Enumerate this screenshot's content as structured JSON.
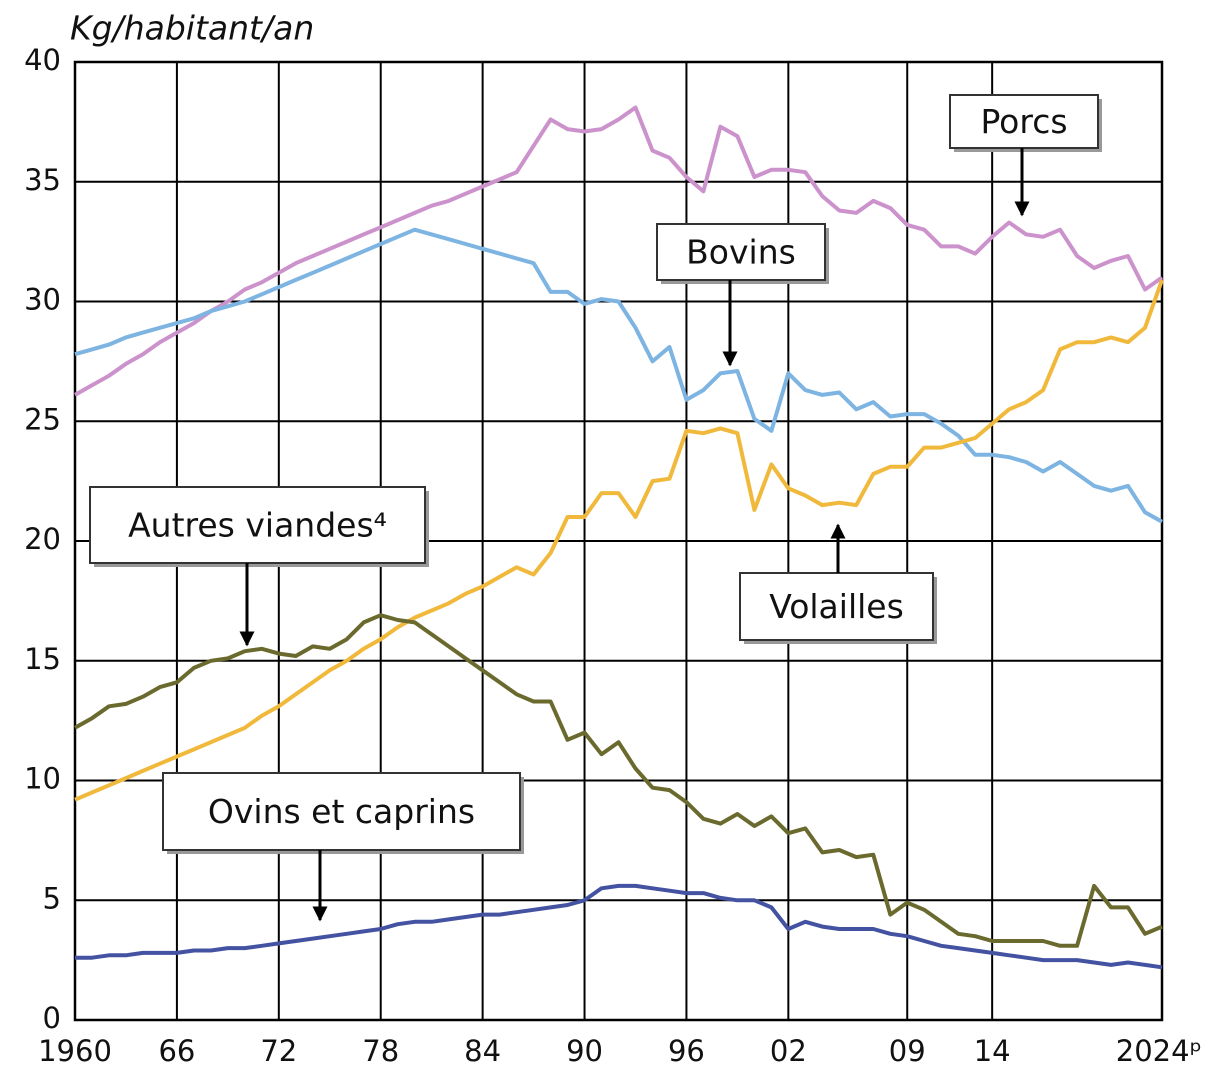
{
  "chart_data": {
    "type": "line",
    "y_label": "Kg/habitant/an",
    "xlim": [
      1960,
      2024
    ],
    "ylim": [
      0,
      40
    ],
    "yticks": [
      0,
      5,
      10,
      15,
      20,
      25,
      30,
      35,
      40
    ],
    "xticks": [
      1960,
      {
        "value": 1966,
        "label": "66"
      },
      {
        "value": 1972,
        "label": "72"
      },
      {
        "value": 1978,
        "label": "78"
      },
      {
        "value": 1984,
        "label": "84"
      },
      {
        "value": 1990,
        "label": "90"
      },
      {
        "value": 1996,
        "label": "96"
      },
      {
        "value": 2002,
        "label": "02"
      },
      {
        "value": 2009,
        "label": "09"
      },
      {
        "value": 2014,
        "label": "14"
      },
      {
        "value": 2024,
        "label": "2024ᵖ"
      }
    ],
    "grid": true,
    "x": [
      1960,
      1961,
      1962,
      1963,
      1964,
      1965,
      1966,
      1967,
      1968,
      1969,
      1970,
      1971,
      1972,
      1973,
      1974,
      1975,
      1976,
      1977,
      1978,
      1979,
      1980,
      1981,
      1982,
      1983,
      1984,
      1985,
      1986,
      1987,
      1988,
      1989,
      1990,
      1991,
      1992,
      1993,
      1994,
      1995,
      1996,
      1997,
      1998,
      1999,
      2000,
      2001,
      2002,
      2003,
      2004,
      2005,
      2006,
      2007,
      2008,
      2009,
      2010,
      2011,
      2012,
      2013,
      2014,
      2015,
      2016,
      2017,
      2018,
      2019,
      2020,
      2021,
      2022,
      2023,
      2024
    ],
    "series": [
      {
        "name": "Porcs",
        "color": "#cc92cc",
        "values": [
          26.1,
          26.5,
          26.9,
          27.4,
          27.8,
          28.3,
          28.7,
          29.1,
          29.6,
          30.0,
          30.5,
          30.8,
          31.2,
          31.6,
          31.9,
          32.2,
          32.5,
          32.8,
          33.1,
          33.4,
          33.7,
          34.0,
          34.2,
          34.5,
          34.8,
          35.1,
          35.4,
          36.5,
          37.6,
          37.2,
          37.1,
          37.2,
          37.6,
          38.1,
          36.3,
          36.0,
          35.2,
          34.6,
          37.3,
          36.9,
          35.2,
          35.5,
          35.5,
          35.4,
          34.4,
          33.8,
          33.7,
          34.2,
          33.9,
          33.2,
          33.0,
          32.3,
          32.3,
          32.0,
          32.7,
          33.3,
          32.8,
          32.7,
          33.0,
          31.9,
          31.4,
          31.7,
          31.9,
          30.5,
          31.0
        ]
      },
      {
        "name": "Bovins",
        "color": "#7db4e2",
        "values": [
          27.8,
          28.0,
          28.2,
          28.5,
          28.7,
          28.9,
          29.1,
          29.3,
          29.6,
          29.8,
          30.0,
          30.3,
          30.6,
          30.9,
          31.2,
          31.5,
          31.8,
          32.1,
          32.4,
          32.7,
          33.0,
          32.8,
          32.6,
          32.4,
          32.2,
          32.0,
          31.8,
          31.6,
          30.4,
          30.4,
          29.9,
          30.1,
          30.0,
          28.9,
          27.5,
          28.1,
          25.9,
          26.3,
          27.0,
          27.1,
          25.1,
          24.6,
          27.0,
          26.3,
          26.1,
          26.2,
          25.5,
          25.8,
          25.2,
          25.3,
          25.3,
          24.9,
          24.4,
          23.6,
          23.6,
          23.5,
          23.3,
          22.9,
          23.3,
          22.8,
          22.3,
          22.1,
          22.3,
          21.2,
          20.8
        ]
      },
      {
        "name": "Volailles",
        "color": "#f0b93c",
        "values": [
          9.2,
          9.5,
          9.8,
          10.1,
          10.4,
          10.7,
          11.0,
          11.3,
          11.6,
          11.9,
          12.2,
          12.7,
          13.1,
          13.6,
          14.1,
          14.6,
          15.0,
          15.5,
          15.9,
          16.4,
          16.8,
          17.1,
          17.4,
          17.8,
          18.1,
          18.5,
          18.9,
          18.6,
          19.5,
          21.0,
          21.0,
          22.0,
          22.0,
          21.0,
          22.5,
          22.6,
          24.6,
          24.5,
          24.7,
          24.5,
          21.3,
          23.2,
          22.2,
          21.9,
          21.5,
          21.6,
          21.5,
          22.8,
          23.1,
          23.1,
          23.9,
          23.9,
          24.1,
          24.3,
          24.9,
          25.5,
          25.8,
          26.3,
          28.0,
          28.3,
          28.3,
          28.5,
          28.3,
          28.9,
          30.9
        ]
      },
      {
        "name": "Autres viandes⁴",
        "color": "#6b6a2e",
        "values": [
          12.2,
          12.6,
          13.1,
          13.2,
          13.5,
          13.9,
          14.1,
          14.7,
          15.0,
          15.1,
          15.4,
          15.5,
          15.3,
          15.2,
          15.6,
          15.5,
          15.9,
          16.6,
          16.9,
          16.7,
          16.6,
          16.1,
          15.6,
          15.1,
          14.6,
          14.1,
          13.6,
          13.3,
          13.3,
          11.7,
          12.0,
          11.1,
          11.6,
          10.5,
          9.7,
          9.6,
          9.1,
          8.4,
          8.2,
          8.6,
          8.1,
          8.5,
          7.8,
          8.0,
          7.0,
          7.1,
          6.8,
          6.9,
          4.4,
          4.9,
          4.6,
          4.1,
          3.6,
          3.5,
          3.3,
          3.3,
          3.3,
          3.3,
          3.1,
          3.1,
          5.6,
          4.7,
          4.7,
          3.6,
          3.9
        ]
      },
      {
        "name": "Ovins et caprins",
        "color": "#4452a2",
        "values": [
          2.6,
          2.6,
          2.7,
          2.7,
          2.8,
          2.8,
          2.8,
          2.9,
          2.9,
          3.0,
          3.0,
          3.1,
          3.2,
          3.3,
          3.4,
          3.5,
          3.6,
          3.7,
          3.8,
          4.0,
          4.1,
          4.1,
          4.2,
          4.3,
          4.4,
          4.4,
          4.5,
          4.6,
          4.7,
          4.8,
          5.0,
          5.5,
          5.6,
          5.6,
          5.5,
          5.4,
          5.3,
          5.3,
          5.1,
          5.0,
          5.0,
          4.7,
          3.8,
          4.1,
          3.9,
          3.8,
          3.8,
          3.8,
          3.6,
          3.5,
          3.3,
          3.1,
          3.0,
          2.9,
          2.8,
          2.7,
          2.6,
          2.5,
          2.5,
          2.5,
          2.4,
          2.3,
          2.4,
          2.3,
          2.2
        ]
      }
    ]
  }
}
